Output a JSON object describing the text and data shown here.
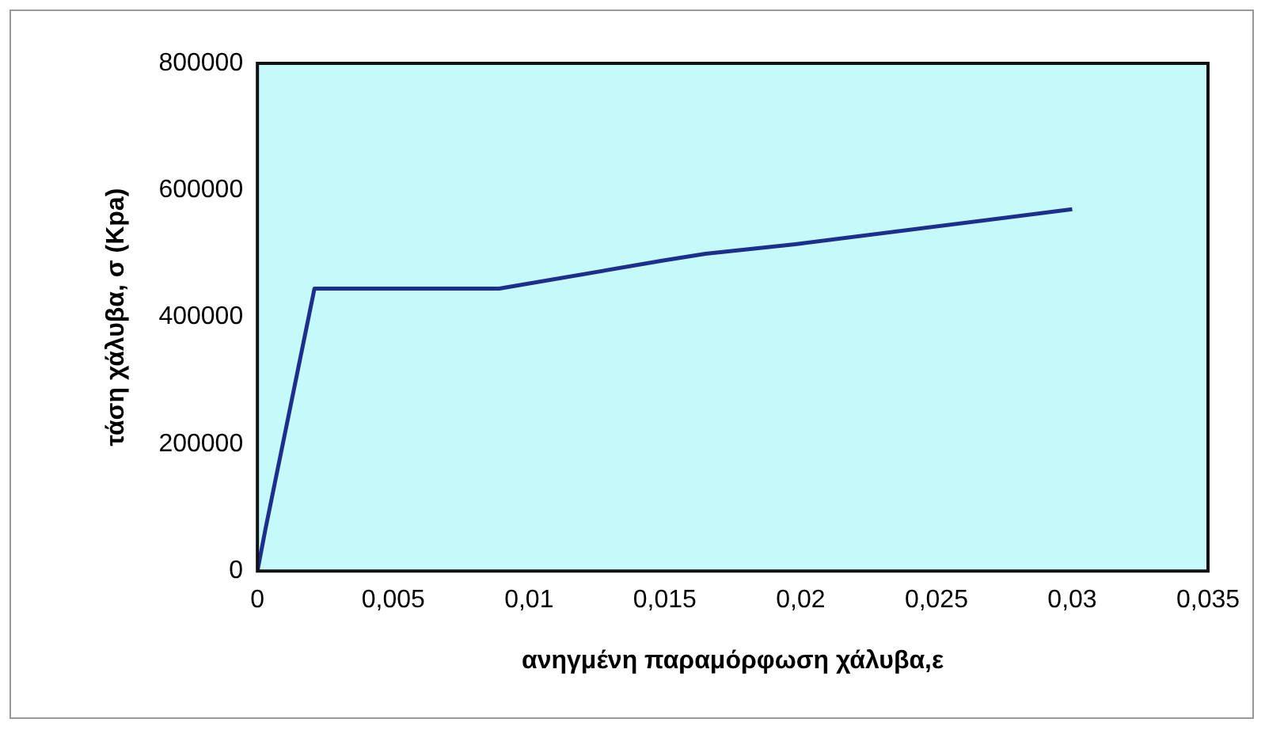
{
  "chart_data": {
    "type": "line",
    "xlabel": "ανηγμένη παραμόρφωση χάλυβα,ε",
    "ylabel": "τάση χάλυβα, σ (Kpa)",
    "x": [
      0,
      0.0003,
      0.0021,
      0.0089,
      0.0149,
      0.0165,
      0.0198,
      0.03
    ],
    "series": [
      {
        "color": "#1c2f8c",
        "values": [
          0,
          67000,
          445000,
          445000,
          489000,
          500000,
          515000,
          570000
        ]
      }
    ],
    "xlim": [
      0,
      0.035
    ],
    "xticks": [
      0,
      {
        "value": 0.005,
        "label": "0,005"
      },
      {
        "value": 0.01,
        "label": "0,01"
      },
      {
        "value": 0.015,
        "label": "0,015"
      },
      {
        "value": 0.02,
        "label": "0,02"
      },
      {
        "value": 0.025,
        "label": "0,025"
      },
      {
        "value": 0.03,
        "label": "0,03"
      },
      {
        "value": 0.035,
        "label": "0,035"
      }
    ],
    "ylim": [
      0,
      800000
    ],
    "yticks": [
      0,
      200000,
      400000,
      600000,
      800000
    ],
    "grid": false,
    "legend": false,
    "marker": "none",
    "line_style": "solid"
  }
}
